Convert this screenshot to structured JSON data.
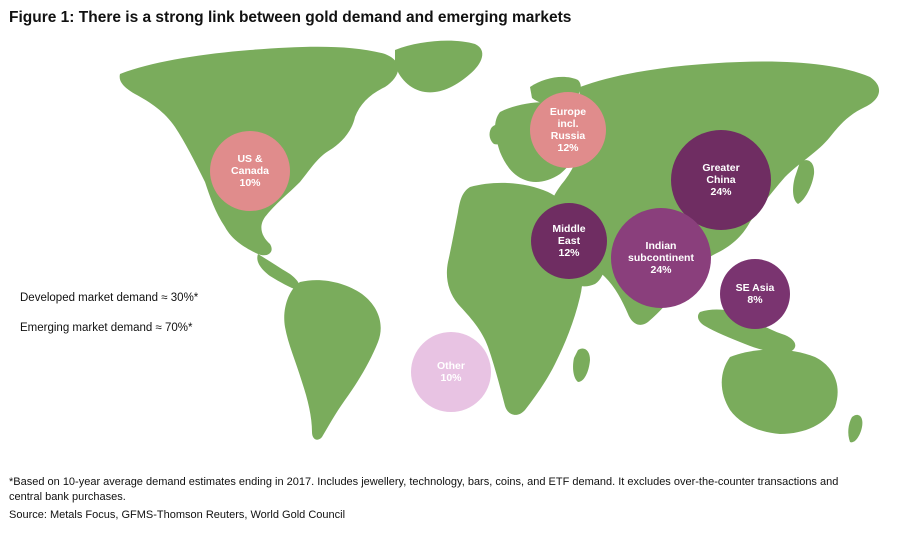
{
  "figure": {
    "title": "Figure 1: There is a strong link between gold demand and emerging markets"
  },
  "notes": {
    "developed": "Developed market demand ≈ 30%*",
    "emerging": "Emerging market demand ≈ 70%*"
  },
  "regions": [
    {
      "id": "us-canada",
      "lines": [
        "US &",
        "Canada"
      ],
      "share": "10%",
      "color": "#e08c8c"
    },
    {
      "id": "europe-russia",
      "lines": [
        "Europe",
        "incl.",
        "Russia"
      ],
      "share": "12%",
      "color": "#e08c8c"
    },
    {
      "id": "greater-china",
      "lines": [
        "Greater",
        "China"
      ],
      "share": "24%",
      "color": "#6f2d62"
    },
    {
      "id": "middle-east",
      "lines": [
        "Middle",
        "East"
      ],
      "share": "12%",
      "color": "#6f2d62"
    },
    {
      "id": "indian-subcontinent",
      "lines": [
        "Indian",
        "subcontinent"
      ],
      "share": "24%",
      "color": "#8a3f7c"
    },
    {
      "id": "se-asia",
      "lines": [
        "SE Asia"
      ],
      "share": "8%",
      "color": "#7a3470"
    },
    {
      "id": "other",
      "lines": [
        "Other"
      ],
      "share": "10%",
      "color": "#e8c3e3"
    }
  ],
  "colors": {
    "land": "#7aac5c",
    "developed": "#e08c8c",
    "emerging": "#6f2d62",
    "other": "#e8c3e3"
  },
  "footnote": "*Based on 10-year average demand estimates ending in 2017. Includes jewellery, technology, bars, coins, and ETF demand. It excludes over-the-counter transactions and central bank purchases.",
  "source": "Source: Metals Focus, GFMS-Thomson Reuters, World Gold Council"
}
